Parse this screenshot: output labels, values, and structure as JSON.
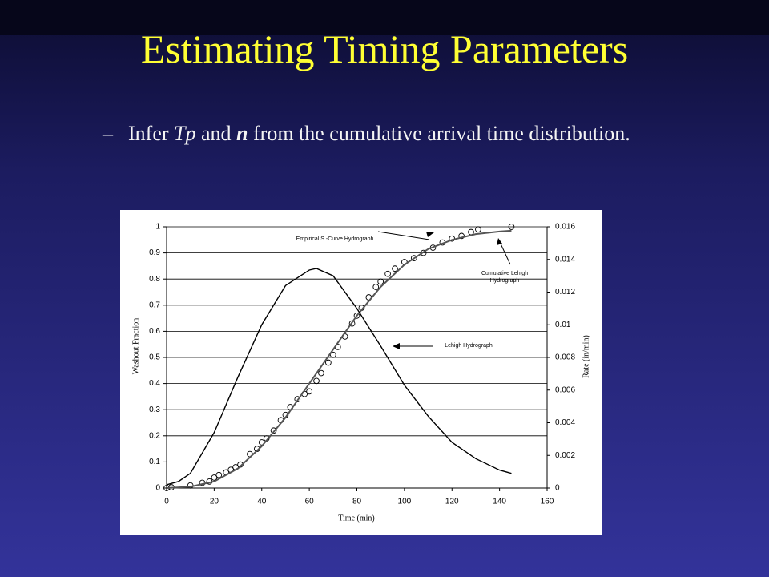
{
  "slide": {
    "title": "Estimating Timing Parameters",
    "bullet_marker": "–",
    "bullet_parts": [
      "Infer ",
      "Tp",
      " and ",
      "n",
      " from the cumulative arrival time distribution."
    ]
  },
  "chart_data": {
    "type": "line",
    "x_label": "Time (min)",
    "y_label": "Washout Fraction",
    "y2_label": "Rate (in/min)",
    "xlim": [
      0,
      160
    ],
    "xticks": [
      0,
      20,
      40,
      60,
      80,
      100,
      120,
      140,
      160
    ],
    "ylim": [
      0,
      1
    ],
    "yticks": [
      0,
      0.1,
      0.2,
      0.3,
      0.4,
      0.5,
      0.6,
      0.7,
      0.8,
      0.9,
      1
    ],
    "y2lim": [
      0,
      0.016
    ],
    "y2ticks": [
      0,
      0.002,
      0.004,
      0.006,
      0.008,
      0.01,
      0.012,
      0.014,
      0.016
    ],
    "grid": true,
    "series": [
      {
        "name": "Empirical S -Curve Hydrograph",
        "color": "#000000",
        "style": "markers",
        "x": [
          0,
          2,
          10,
          15,
          18,
          20,
          22,
          25,
          27,
          29,
          31,
          35,
          38,
          40,
          42,
          45,
          48,
          50,
          52,
          55,
          58,
          60,
          63,
          65,
          68,
          70,
          72,
          75,
          78,
          80,
          82,
          85,
          88,
          90,
          93,
          96,
          100,
          104,
          108,
          112,
          116,
          120,
          124,
          128,
          131,
          145
        ],
        "values": [
          0,
          0.003,
          0.01,
          0.02,
          0.025,
          0.04,
          0.05,
          0.06,
          0.07,
          0.08,
          0.09,
          0.13,
          0.15,
          0.175,
          0.19,
          0.22,
          0.26,
          0.28,
          0.31,
          0.34,
          0.36,
          0.37,
          0.41,
          0.44,
          0.48,
          0.51,
          0.54,
          0.58,
          0.63,
          0.66,
          0.69,
          0.73,
          0.77,
          0.79,
          0.82,
          0.84,
          0.865,
          0.88,
          0.9,
          0.92,
          0.94,
          0.955,
          0.965,
          0.98,
          0.99,
          1.0
        ]
      },
      {
        "name": "Cumulative Lehigh Hydrograph",
        "color": "#555555",
        "style": "line",
        "x": [
          0,
          10,
          20,
          30,
          40,
          50,
          60,
          70,
          80,
          90,
          100,
          110,
          120,
          130,
          140,
          145
        ],
        "values": [
          0,
          0.005,
          0.025,
          0.075,
          0.16,
          0.27,
          0.4,
          0.53,
          0.66,
          0.77,
          0.855,
          0.915,
          0.95,
          0.972,
          0.982,
          0.985
        ]
      },
      {
        "name": "Lehigh Hydrograph",
        "color": "#000000",
        "style": "line",
        "axis": "y2",
        "x": [
          0,
          5,
          10,
          20,
          30,
          40,
          50,
          60,
          63,
          70,
          80,
          90,
          100,
          110,
          120,
          130,
          140,
          145
        ],
        "values": [
          0.0002,
          0.0004,
          0.0009,
          0.0034,
          0.0068,
          0.01,
          0.0124,
          0.01335,
          0.01345,
          0.013,
          0.011,
          0.0087,
          0.0063,
          0.0044,
          0.0028,
          0.0018,
          0.0011,
          0.0009
        ]
      }
    ]
  }
}
